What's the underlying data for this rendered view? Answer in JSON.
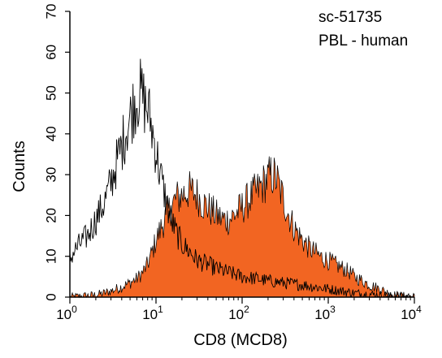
{
  "chart_data": {
    "type": "area",
    "title": "",
    "xlabel": "CD8 (MCD8)",
    "ylabel": "Counts",
    "x_scale": "log",
    "xlim": [
      1,
      10000
    ],
    "ylim": [
      0,
      70
    ],
    "x_ticks": [
      {
        "base": "10",
        "exp": "0",
        "value": 1
      },
      {
        "base": "10",
        "exp": "1",
        "value": 10
      },
      {
        "base": "10",
        "exp": "2",
        "value": 100
      },
      {
        "base": "10",
        "exp": "3",
        "value": 1000
      },
      {
        "base": "10",
        "exp": "4",
        "value": 10000
      }
    ],
    "y_ticks": [
      "0",
      "10",
      "20",
      "30",
      "40",
      "50",
      "60",
      "70"
    ],
    "annotations": [
      "sc-51735",
      "PBL - human"
    ],
    "grid": false,
    "series": [
      {
        "style": "outline",
        "color": "#000000",
        "x": [
          1,
          1.1,
          1.3,
          1.6,
          2,
          2.5,
          3,
          3.5,
          4,
          4.5,
          5,
          5.5,
          6,
          6.5,
          7,
          7.5,
          8,
          8.5,
          9,
          10,
          11,
          12,
          13,
          14,
          15,
          17,
          20,
          25,
          30,
          40,
          50,
          70,
          100,
          150,
          200,
          300,
          500,
          700,
          1000,
          2000,
          3000,
          5000,
          10000
        ],
        "y": [
          9,
          11,
          13,
          15,
          19,
          23,
          28,
          33,
          37,
          41,
          44,
          47,
          49,
          50,
          49,
          47,
          46,
          44,
          41,
          36,
          31,
          27,
          24,
          21,
          19,
          16,
          13,
          11,
          9,
          8,
          7,
          6,
          5,
          4.5,
          4,
          3.5,
          3,
          2.5,
          2,
          1,
          0.7,
          0.3,
          0
        ]
      },
      {
        "style": "filled",
        "color": "#f26522",
        "x": [
          1,
          1.5,
          2,
          2.5,
          3,
          3.5,
          4,
          5,
          6,
          7,
          8,
          9,
          10,
          11,
          12,
          13,
          14,
          15,
          17,
          20,
          23,
          25,
          30,
          35,
          40,
          45,
          50,
          60,
          70,
          80,
          90,
          100,
          120,
          150,
          180,
          200,
          220,
          250,
          270,
          300,
          350,
          400,
          500,
          600,
          700,
          800,
          1000,
          1200,
          1500,
          1800,
          2000,
          2500,
          3000,
          4000,
          5000,
          6000,
          10000
        ],
        "y": [
          0,
          0.3,
          0.5,
          1,
          1.5,
          2,
          2.5,
          3.5,
          4.5,
          6,
          8,
          11,
          14,
          16,
          18,
          20,
          21,
          22,
          24,
          25,
          26,
          26,
          25,
          23,
          22,
          21,
          20,
          19,
          19,
          20,
          21,
          22,
          24,
          26,
          28,
          29,
          30,
          29,
          27,
          24,
          20,
          17,
          14,
          12,
          11,
          10,
          9,
          8,
          7,
          6,
          5,
          4,
          3,
          2,
          1,
          0.5,
          0
        ]
      }
    ]
  }
}
